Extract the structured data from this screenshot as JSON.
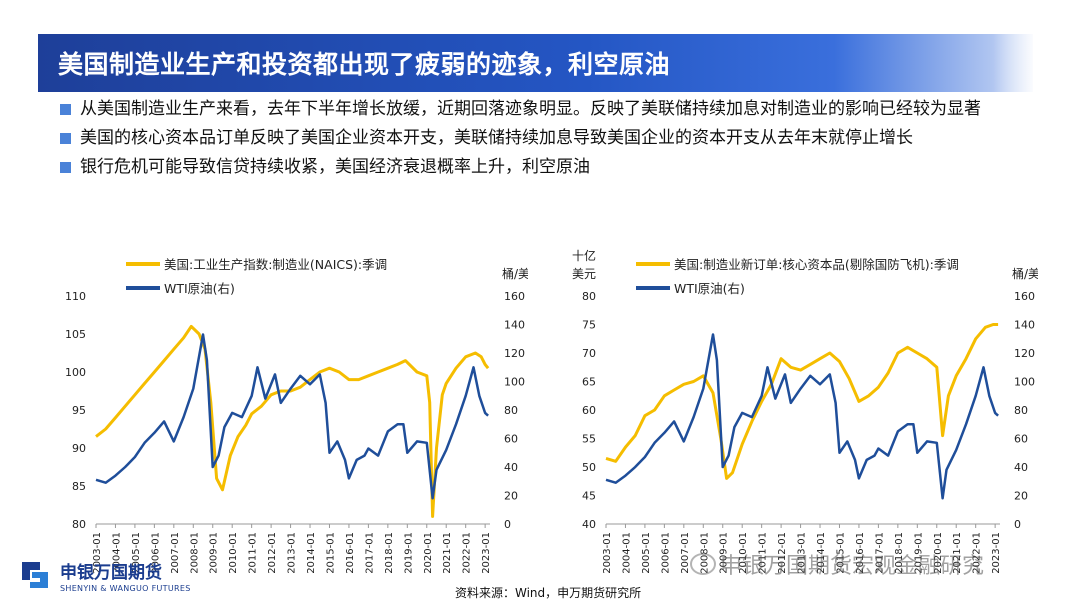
{
  "slide": {
    "title": "美国制造业生产和投资都出现了疲弱的迹象，利空原油",
    "bullets": [
      "从美国制造业生产来看，去年下半年增长放缓，近期回落迹象明显。反映了美联储持续加息对制造业的影响已经较为显著",
      "美国的核心资本品订单反映了美国企业资本开支，美联储持续加息导致美国企业的资本开支从去年末就停止增长",
      "银行危机可能导致信贷持续收紧，美国经济衰退概率上升，利空原油"
    ],
    "source": "资料来源：Wind，申万期货研究所",
    "logo": {
      "cn": "申银万国期货",
      "en": "SHENYIN & WANGUO FUTURES"
    },
    "watermark": "申银万国期货宏观金融研究"
  },
  "colors": {
    "series_a": "#f5bd00",
    "series_b": "#1f4e9a",
    "title_bg": "#2456c4",
    "bullet": "#4a82d8"
  },
  "chart_data": [
    {
      "type": "line",
      "x_tick_labels": [
        "2003-01",
        "2004-01",
        "2005-01",
        "2006-01",
        "2007-01",
        "2008-01",
        "2009-01",
        "2010-01",
        "2011-01",
        "2012-01",
        "2013-01",
        "2014-01",
        "2015-01",
        "2016-01",
        "2017-01",
        "2018-01",
        "2019-01",
        "2020-01",
        "2021-01",
        "2022-01",
        "2023-01"
      ],
      "xlim": [
        2003.0,
        2023.25
      ],
      "left_axis": {
        "label": "",
        "ylim": [
          80,
          110
        ],
        "ticks": [
          80,
          85,
          90,
          95,
          100,
          105,
          110
        ]
      },
      "right_axis": {
        "label": "桶/美元",
        "ylim": [
          0,
          160
        ],
        "ticks": [
          0,
          20,
          40,
          60,
          80,
          100,
          120,
          140,
          160
        ]
      },
      "legend": "top-left",
      "series": [
        {
          "name": "美国:工业生产指数:制造业(NAICS):季调",
          "axis": "left",
          "color": "#f5bd00",
          "x": [
            2003.0,
            2003.5,
            2004.0,
            2004.5,
            2005.0,
            2005.5,
            2006.0,
            2006.5,
            2007.0,
            2007.5,
            2007.9,
            2008.3,
            2008.6,
            2008.9,
            2009.2,
            2009.5,
            2009.9,
            2010.3,
            2010.7,
            2011.0,
            2011.5,
            2012.0,
            2012.5,
            2013.0,
            2013.5,
            2014.0,
            2014.5,
            2015.0,
            2015.5,
            2016.0,
            2016.5,
            2017.0,
            2017.5,
            2018.0,
            2018.5,
            2018.9,
            2019.5,
            2020.0,
            2020.15,
            2020.3,
            2020.5,
            2020.8,
            2021.0,
            2021.5,
            2022.0,
            2022.5,
            2022.8,
            2023.0,
            2023.15
          ],
          "y": [
            91.5,
            92.5,
            94.0,
            95.5,
            97.0,
            98.5,
            100.0,
            101.5,
            103.0,
            104.5,
            106.0,
            105.0,
            103.0,
            96.0,
            86.0,
            84.5,
            89.0,
            91.5,
            93.0,
            94.5,
            95.5,
            97.0,
            97.5,
            97.5,
            98.0,
            99.0,
            100.0,
            100.5,
            100.0,
            99.0,
            99.0,
            99.5,
            100.0,
            100.5,
            101.0,
            101.5,
            100.0,
            99.5,
            96.0,
            81.0,
            90.0,
            97.0,
            98.5,
            100.5,
            102.0,
            102.5,
            102.0,
            101.0,
            100.5
          ]
        },
        {
          "name": "WTI原油(右)",
          "axis": "right",
          "color": "#1f4e9a",
          "x": [
            2003.0,
            2003.5,
            2004.0,
            2004.5,
            2005.0,
            2005.5,
            2006.0,
            2006.5,
            2007.0,
            2007.5,
            2008.0,
            2008.5,
            2008.7,
            2009.0,
            2009.3,
            2009.6,
            2010.0,
            2010.5,
            2011.0,
            2011.3,
            2011.7,
            2012.2,
            2012.5,
            2013.0,
            2013.5,
            2014.0,
            2014.5,
            2014.8,
            2015.0,
            2015.4,
            2015.8,
            2016.0,
            2016.4,
            2016.8,
            2017.0,
            2017.5,
            2018.0,
            2018.5,
            2018.8,
            2019.0,
            2019.5,
            2020.0,
            2020.3,
            2020.5,
            2021.0,
            2021.5,
            2022.0,
            2022.4,
            2022.7,
            2023.0,
            2023.15
          ],
          "y": [
            31,
            29,
            34,
            40,
            47,
            57,
            64,
            72,
            58,
            75,
            95,
            133,
            115,
            40,
            48,
            68,
            78,
            75,
            90,
            110,
            88,
            105,
            85,
            95,
            104,
            98,
            105,
            85,
            50,
            58,
            45,
            32,
            45,
            48,
            53,
            48,
            65,
            70,
            70,
            50,
            58,
            57,
            18,
            38,
            52,
            70,
            90,
            110,
            90,
            78,
            76
          ]
        }
      ]
    },
    {
      "type": "line",
      "x_tick_labels": [
        "2003-01",
        "2004-01",
        "2005-01",
        "2006-01",
        "2007-01",
        "2008-01",
        "2009-01",
        "2010-01",
        "2011-01",
        "2012-01",
        "2013-01",
        "2014-01",
        "2015-01",
        "2016-01",
        "2017-01",
        "2018-01",
        "2019-01",
        "2020-01",
        "2021-01",
        "2022-01",
        "2023-01"
      ],
      "xlim": [
        2003.0,
        2023.25
      ],
      "left_axis": {
        "label": "十亿美元",
        "ylim": [
          40,
          80
        ],
        "ticks": [
          40,
          45,
          50,
          55,
          60,
          65,
          70,
          75,
          80
        ]
      },
      "right_axis": {
        "label": "桶/美元",
        "ylim": [
          0,
          160
        ],
        "ticks": [
          0,
          20,
          40,
          60,
          80,
          100,
          120,
          140,
          160
        ]
      },
      "legend": "top-left",
      "series": [
        {
          "name": "美国:制造业新订单:核心资本品(剔除国防飞机):季调",
          "axis": "left",
          "color": "#f5bd00",
          "x": [
            2003.0,
            2003.5,
            2004.0,
            2004.5,
            2005.0,
            2005.5,
            2006.0,
            2006.5,
            2007.0,
            2007.5,
            2008.0,
            2008.5,
            2008.9,
            2009.2,
            2009.5,
            2010.0,
            2010.5,
            2011.0,
            2011.5,
            2012.0,
            2012.5,
            2013.0,
            2013.5,
            2014.0,
            2014.5,
            2015.0,
            2015.5,
            2016.0,
            2016.5,
            2017.0,
            2017.5,
            2018.0,
            2018.5,
            2019.0,
            2019.5,
            2020.0,
            2020.3,
            2020.6,
            2021.0,
            2021.5,
            2022.0,
            2022.5,
            2022.9,
            2023.15
          ],
          "y": [
            51.5,
            51.0,
            53.5,
            55.5,
            59.0,
            60.0,
            62.5,
            63.5,
            64.5,
            65.0,
            66.0,
            63.0,
            55.0,
            48.0,
            49.0,
            54.0,
            58.0,
            61.5,
            64.5,
            69.0,
            67.5,
            67.0,
            68.0,
            69.0,
            70.0,
            68.5,
            65.5,
            61.5,
            62.5,
            64.0,
            66.5,
            70.0,
            71.0,
            70.0,
            69.0,
            67.5,
            55.5,
            62.5,
            66.0,
            69.0,
            72.5,
            74.5,
            75.0,
            75.0
          ]
        },
        {
          "name": "WTI原油(右)",
          "axis": "right",
          "color": "#1f4e9a",
          "x": [
            2003.0,
            2003.5,
            2004.0,
            2004.5,
            2005.0,
            2005.5,
            2006.0,
            2006.5,
            2007.0,
            2007.5,
            2008.0,
            2008.5,
            2008.7,
            2009.0,
            2009.3,
            2009.6,
            2010.0,
            2010.5,
            2011.0,
            2011.3,
            2011.7,
            2012.2,
            2012.5,
            2013.0,
            2013.5,
            2014.0,
            2014.5,
            2014.8,
            2015.0,
            2015.4,
            2015.8,
            2016.0,
            2016.4,
            2016.8,
            2017.0,
            2017.5,
            2018.0,
            2018.5,
            2018.8,
            2019.0,
            2019.5,
            2020.0,
            2020.3,
            2020.5,
            2021.0,
            2021.5,
            2022.0,
            2022.4,
            2022.7,
            2023.0,
            2023.15
          ],
          "y": [
            31,
            29,
            34,
            40,
            47,
            57,
            64,
            72,
            58,
            75,
            95,
            133,
            115,
            40,
            48,
            68,
            78,
            75,
            90,
            110,
            88,
            105,
            85,
            95,
            104,
            98,
            105,
            85,
            50,
            58,
            45,
            32,
            45,
            48,
            53,
            48,
            65,
            70,
            70,
            50,
            58,
            57,
            18,
            38,
            52,
            70,
            90,
            110,
            90,
            78,
            76
          ]
        }
      ]
    }
  ]
}
